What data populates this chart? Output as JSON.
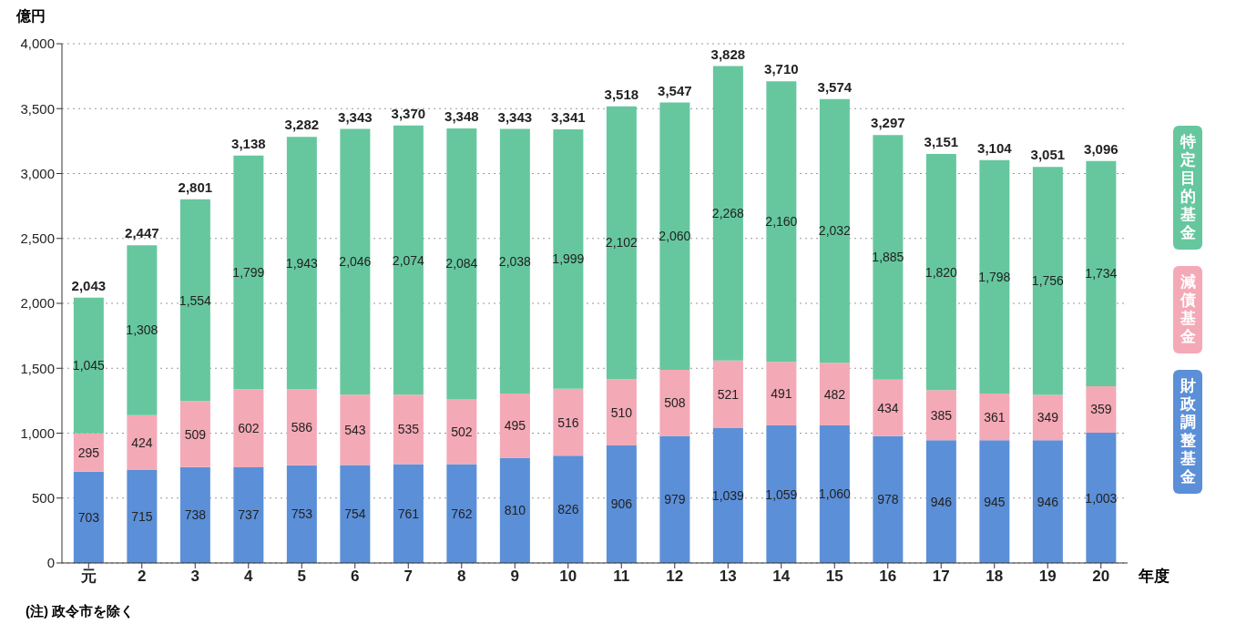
{
  "chart_data": {
    "type": "bar",
    "stacked": true,
    "ylabel": "億円",
    "xlabel": "年度",
    "categories": [
      "元",
      "2",
      "3",
      "4",
      "5",
      "6",
      "7",
      "8",
      "9",
      "10",
      "11",
      "12",
      "13",
      "14",
      "15",
      "16",
      "17",
      "18",
      "19",
      "20"
    ],
    "series": [
      {
        "name": "財政調整基金",
        "color": "#5b8fd8",
        "values": [
          703,
          715,
          738,
          737,
          753,
          754,
          761,
          762,
          810,
          826,
          906,
          979,
          1039,
          1059,
          1060,
          978,
          946,
          945,
          946,
          1003
        ],
        "value_labels": [
          "703",
          "715",
          "738",
          "737",
          "753",
          "754",
          "761",
          "762",
          "810",
          "826",
          "906",
          "979",
          "1,039",
          "1,059",
          "1,060",
          "978",
          "946",
          "945",
          "946",
          "1,003"
        ]
      },
      {
        "name": "減債基金",
        "color": "#f4a9b6",
        "values": [
          295,
          424,
          509,
          602,
          586,
          543,
          535,
          502,
          495,
          516,
          510,
          508,
          521,
          491,
          482,
          434,
          385,
          361,
          349,
          359
        ],
        "value_labels": [
          "295",
          "424",
          "509",
          "602",
          "586",
          "543",
          "535",
          "502",
          "495",
          "516",
          "510",
          "508",
          "521",
          "491",
          "482",
          "434",
          "385",
          "361",
          "349",
          "359"
        ]
      },
      {
        "name": "特定目的基金",
        "color": "#66c79e",
        "values": [
          1045,
          1308,
          1554,
          1799,
          1943,
          2046,
          2074,
          2084,
          2038,
          1999,
          2102,
          2060,
          2268,
          2160,
          2032,
          1885,
          1820,
          1798,
          1756,
          1734
        ],
        "value_labels": [
          "1,045",
          "1,308",
          "1,554",
          "1,799",
          "1,943",
          "2,046",
          "2,074",
          "2,084",
          "2,038",
          "1,999",
          "2,102",
          "2,060",
          "2,268",
          "2,160",
          "2,032",
          "1,885",
          "1,820",
          "1,798",
          "1,756",
          "1,734"
        ]
      }
    ],
    "totals": [
      "2,043",
      "2,447",
      "2,801",
      "3,138",
      "3,282",
      "3,343",
      "3,370",
      "3,348",
      "3,343",
      "3,341",
      "3,518",
      "3,547",
      "3,828",
      "3,710",
      "3,574",
      "3,297",
      "3,151",
      "3,104",
      "3,051",
      "3,096"
    ],
    "ylim": [
      0,
      4000
    ],
    "yticks": [
      0,
      500,
      {
        "value": 1000,
        "label": "1,000"
      },
      {
        "value": 1500,
        "label": "1,500"
      },
      {
        "value": 2000,
        "label": "2,000"
      },
      {
        "value": 2500,
        "label": "2,500"
      },
      {
        "value": 3000,
        "label": "3,000"
      },
      {
        "value": 3500,
        "label": "3,500"
      },
      {
        "value": 4000,
        "label": "4,000"
      }
    ],
    "grid": "y",
    "legend": "right",
    "annotations": [
      "(注) 政令市を除く"
    ]
  }
}
